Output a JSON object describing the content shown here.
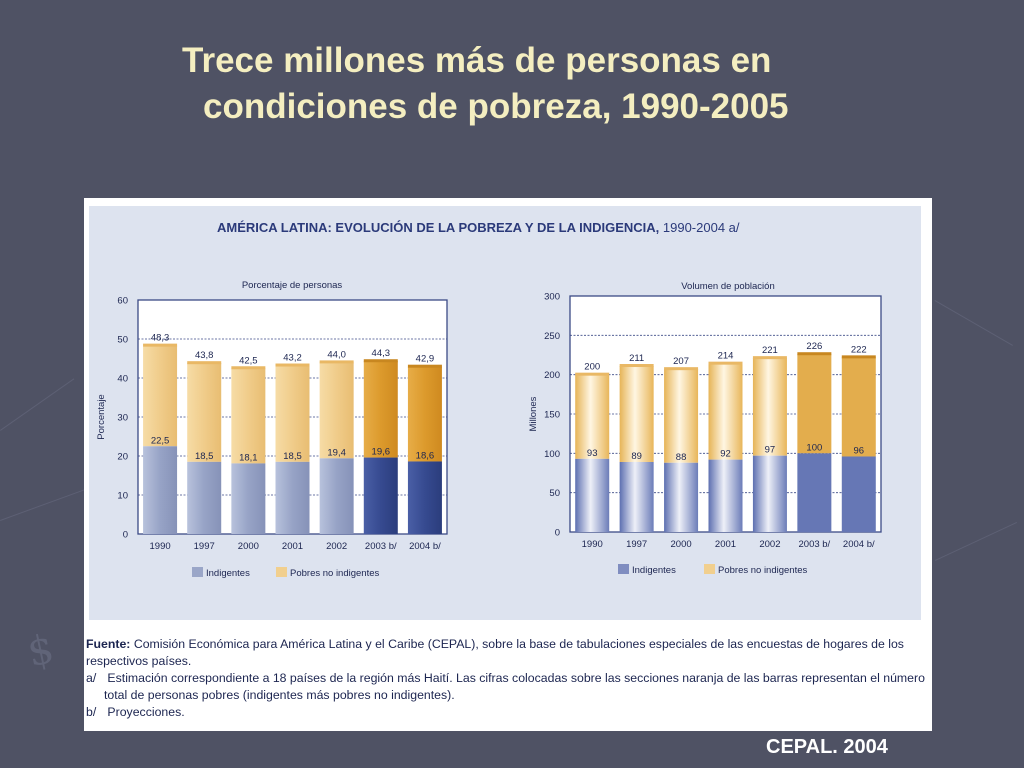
{
  "slide": {
    "title_line1": "Trece millones más de personas en",
    "title_line2": "condiciones de pobreza, 1990-2005",
    "footer_credit": "CEPAL. 2004"
  },
  "figure": {
    "title": "AMÉRICA LATINA: EVOLUCIÓN DE LA POBREZA Y DE LA INDIGENCIA,",
    "title_suffix": "1990-2004 a/",
    "fuente_label": "Fuente:",
    "fuente_text": "Comisión Económica para América Latina y el Caribe (CEPAL), sobre la base de tabulaciones especiales de las encuestas de hogares de los",
    "fuente_text2": "respectivos países.",
    "note_a_marker": "a/",
    "note_a_text": "Estimación correspondiente a 18 países de la región más Haití. Las cifras colocadas sobre las secciones naranja de las barras representan el número",
    "note_a_text2": "total de personas pobres (indigentes más pobres no indigentes).",
    "note_b_marker": "b/",
    "note_b_text": "Proyecciones."
  },
  "colors": {
    "background": "#4f5264",
    "title_text": "#f4eec0",
    "indigentes": "#9aa6c8",
    "indigentes_projection": "#3b4f95",
    "pobres_no_indigentes": "#f1cf8e",
    "pobres_projection": "#dd9d30"
  },
  "chart_data": [
    {
      "type": "bar",
      "stacked": true,
      "title": "Porcentaje de personas",
      "ylabel": "Porcentaje",
      "ylim": [
        0,
        60
      ],
      "yticks": [
        0,
        10,
        20,
        30,
        40,
        50,
        60
      ],
      "categories": [
        "1990",
        "1997",
        "2000",
        "2001",
        "2002",
        "2003 b/",
        "2004 b/"
      ],
      "projected": [
        false,
        false,
        false,
        false,
        false,
        true,
        true
      ],
      "value_labels_indigentes": [
        "22,5",
        "18,5",
        "18,1",
        "18,5",
        "19,4",
        "19,6",
        "18,6"
      ],
      "value_labels_total": [
        "48,3",
        "43,8",
        "42,5",
        "43,2",
        "44,0",
        "44,3",
        "42,9"
      ],
      "series": [
        {
          "name": "Indigentes",
          "values": [
            22.5,
            18.5,
            18.1,
            18.5,
            19.4,
            19.6,
            18.6
          ]
        },
        {
          "name": "Pobres no indigentes",
          "values": [
            25.8,
            25.3,
            24.4,
            24.7,
            24.6,
            24.7,
            24.3
          ]
        }
      ],
      "totals": [
        48.3,
        43.8,
        42.5,
        43.2,
        44.0,
        44.3,
        42.9
      ],
      "legend": [
        "Indigentes",
        "Pobres no indigentes"
      ]
    },
    {
      "type": "bar",
      "stacked": true,
      "title": "Volumen de población",
      "ylabel": "Millones",
      "ylim": [
        0,
        300
      ],
      "yticks": [
        0,
        50,
        100,
        150,
        200,
        250,
        300
      ],
      "categories": [
        "1990",
        "1997",
        "2000",
        "2001",
        "2002",
        "2003 b/",
        "2004 b/"
      ],
      "projected": [
        false,
        false,
        false,
        false,
        false,
        true,
        true
      ],
      "value_labels_indigentes": [
        "93",
        "89",
        "88",
        "92",
        "97",
        "100",
        "96"
      ],
      "value_labels_total": [
        "200",
        "211",
        "207",
        "214",
        "221",
        "226",
        "222"
      ],
      "series": [
        {
          "name": "Indigentes",
          "values": [
            93,
            89,
            88,
            92,
            97,
            100,
            96
          ]
        },
        {
          "name": "Pobres no indigentes",
          "values": [
            107,
            122,
            119,
            122,
            124,
            126,
            126
          ]
        }
      ],
      "totals": [
        200,
        211,
        207,
        214,
        221,
        226,
        222
      ],
      "legend": [
        "Indigentes",
        "Pobres no indigentes"
      ]
    }
  ]
}
